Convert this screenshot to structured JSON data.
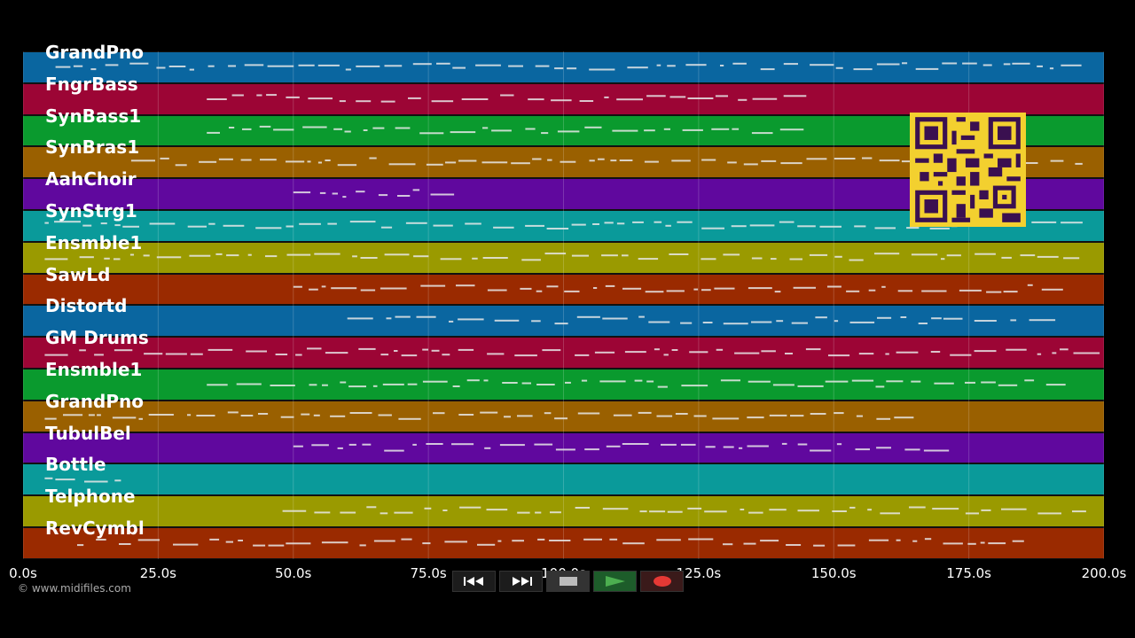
{
  "player": {
    "tracks": [
      {
        "name": "GrandPno",
        "color": "#0a66a0"
      },
      {
        "name": "FngrBass",
        "color": "#9c0535"
      },
      {
        "name": "SynBass1",
        "color": "#0a9a2e"
      },
      {
        "name": "SynBras1",
        "color": "#9a6000"
      },
      {
        "name": "AahChoir",
        "color": "#60089e"
      },
      {
        "name": "SynStrg1",
        "color": "#0a9a9a"
      },
      {
        "name": "Ensmble1",
        "color": "#9a9a00"
      },
      {
        "name": "SawLd",
        "color": "#9a2a00"
      },
      {
        "name": "Distortd",
        "color": "#0a66a0"
      },
      {
        "name": "GM Drums",
        "color": "#9c0535"
      },
      {
        "name": "Ensmble1",
        "color": "#0a9a2e"
      },
      {
        "name": "GrandPno",
        "color": "#9a6000"
      },
      {
        "name": "TubulBel",
        "color": "#60089e"
      },
      {
        "name": "Bottle",
        "color": "#0a9a9a"
      },
      {
        "name": "Telphone",
        "color": "#9a9a00"
      },
      {
        "name": "RevCymbl",
        "color": "#9a2a00"
      }
    ],
    "timeline": {
      "min": 0,
      "max": 200,
      "ticks": [
        "0.0s",
        "25.0s",
        "50.0s",
        "75.0s",
        "100.0s",
        "125.0s",
        "150.0s",
        "175.0s",
        "200.0s"
      ]
    },
    "copyright": "© www.midifiles.com",
    "controls": [
      {
        "name": "rewind-button",
        "icon": "rewind-icon"
      },
      {
        "name": "fast-forward-button",
        "icon": "fast-forward-icon"
      },
      {
        "name": "stop-button",
        "icon": "stop-icon"
      },
      {
        "name": "play-button",
        "icon": "play-icon"
      },
      {
        "name": "record-button",
        "icon": "record-icon"
      }
    ],
    "colors": {
      "background": "#000000",
      "note": "#e8e8e8",
      "qr": "#f3d02f",
      "qr_dark": "#3a1050",
      "play": "#4caf50",
      "record": "#e53935"
    }
  }
}
